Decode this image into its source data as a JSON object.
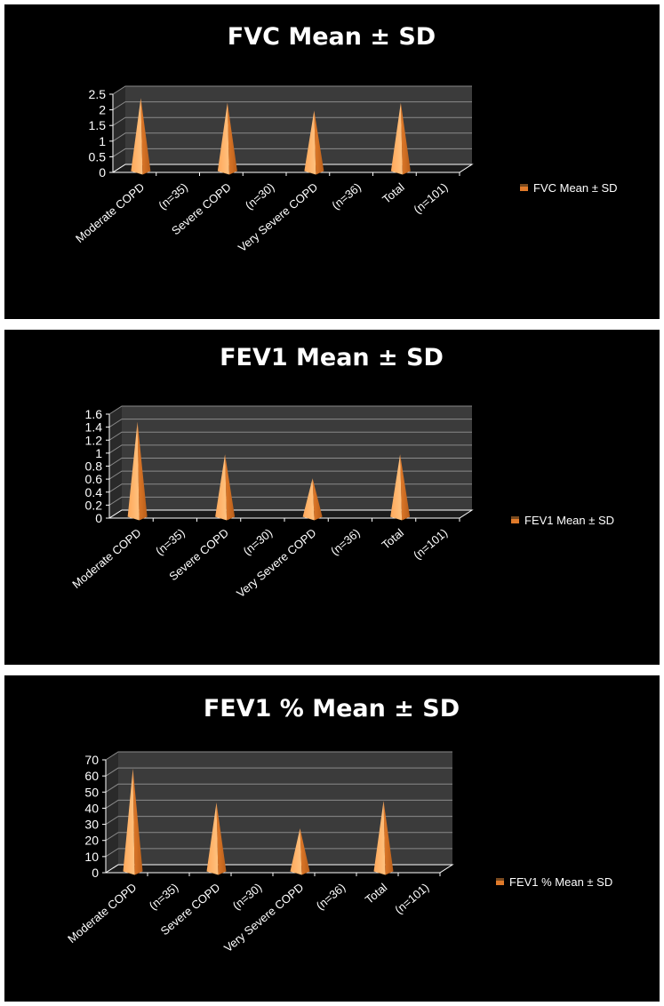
{
  "colors": {
    "background": "#000000",
    "wall": "#3b3b3b",
    "grid": "#8a8a8a",
    "cone_light": "#ffa85a",
    "cone_dark": "#e07a2a",
    "text": "#ffffff"
  },
  "chart_data": [
    {
      "type": "bar",
      "bar_shape": "cone-3d",
      "title": "FVC Mean ± SD",
      "categories": [
        "Moderate COPD",
        "(n=35)",
        "Severe COPD",
        "(n=30)",
        "Very Severe COPD",
        "(n=36)",
        "Total",
        "(n=101)"
      ],
      "series": [
        {
          "name": "FVC Mean ± SD",
          "values": [
            2.25,
            null,
            2.1,
            null,
            1.85,
            null,
            2.1,
            null
          ]
        }
      ],
      "yticks": [
        "0",
        "0.5",
        "1",
        "1.5",
        "2",
        "2.5"
      ],
      "ylim": [
        0,
        2.5
      ],
      "grid": true,
      "legend_position": "right"
    },
    {
      "type": "bar",
      "bar_shape": "cone-3d",
      "title": "FEV1 Mean ± SD",
      "categories": [
        "Moderate COPD",
        "(n=35)",
        "Severe COPD",
        "(n=30)",
        "Very Severe COPD",
        "(n=36)",
        "Total",
        "(n=101)"
      ],
      "series": [
        {
          "name": "FEV1 Mean ± SD",
          "values": [
            1.42,
            null,
            0.92,
            null,
            0.55,
            null,
            0.92,
            null
          ]
        }
      ],
      "yticks": [
        "0",
        "0.2",
        "0.4",
        "0.6",
        "0.8",
        "1",
        "1.2",
        "1.4",
        "1.6"
      ],
      "ylim": [
        0,
        1.6
      ],
      "grid": true,
      "legend_position": "right"
    },
    {
      "type": "bar",
      "bar_shape": "cone-3d",
      "title": "FEV1 % Mean ± SD",
      "categories": [
        "Moderate COPD",
        "(n=35)",
        "Severe COPD",
        "(n=30)",
        "Very Severe COPD",
        "(n=36)",
        "Total",
        "(n=101)"
      ],
      "series": [
        {
          "name": "FEV1 % Mean ± SD",
          "values": [
            62,
            null,
            41,
            null,
            25,
            null,
            42,
            null
          ]
        }
      ],
      "yticks": [
        "0",
        "10",
        "20",
        "30",
        "40",
        "50",
        "60",
        "70"
      ],
      "ylim": [
        0,
        70
      ],
      "grid": true,
      "legend_position": "right"
    }
  ]
}
